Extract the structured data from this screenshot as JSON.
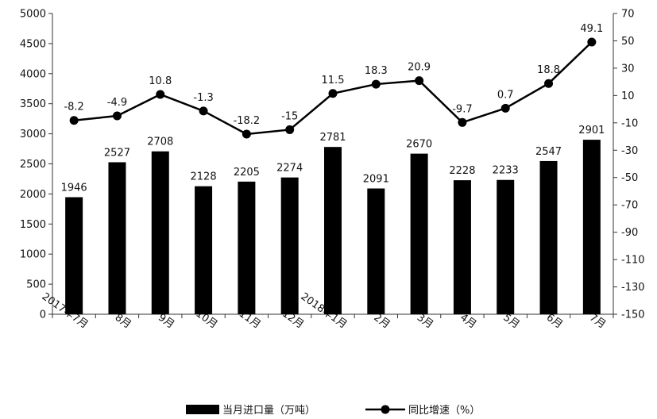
{
  "chart_data": {
    "type": "bar",
    "categories": [
      "2017年7月",
      "8月",
      "9月",
      "10月",
      "11月",
      "12月",
      "2018年1月",
      "2月",
      "3月",
      "4月",
      "5月",
      "6月",
      "7月"
    ],
    "series": [
      {
        "name": "当月进口量（万吨）",
        "type": "bar",
        "axis": "left",
        "values": [
          1946,
          2527,
          2708,
          2128,
          2205,
          2274,
          2781,
          2091,
          2670,
          2228,
          2233,
          2547,
          2901
        ],
        "labels": [
          "1946",
          "2527",
          "2708",
          "2128",
          "2205",
          "2274",
          "2781",
          "2091",
          "2670",
          "2228",
          "2233",
          "2547",
          "2901"
        ]
      },
      {
        "name": "同比增速（%）",
        "type": "line",
        "axis": "right",
        "values": [
          -8.2,
          -4.9,
          10.8,
          -1.3,
          -18.2,
          -15,
          11.5,
          18.3,
          20.9,
          -9.7,
          0.7,
          18.8,
          49.1
        ],
        "labels": [
          "-8.2",
          "-4.9",
          "10.8",
          "-1.3",
          "-18.2",
          "-15",
          "11.5",
          "18.3",
          "20.9",
          "-9.7",
          "0.7",
          "18.8",
          "49.1"
        ]
      }
    ],
    "ylim_left": [
      0,
      5000
    ],
    "yticks_left": [
      "0",
      "500",
      "1000",
      "1500",
      "2000",
      "2500",
      "3000",
      "3500",
      "4000",
      "4500",
      "5000"
    ],
    "ylim_right": [
      -150,
      70
    ],
    "yticks_right": [
      "-150",
      "-130",
      "-110",
      "-90",
      "-70",
      "-50",
      "-30",
      "-10",
      "10",
      "30",
      "50",
      "70"
    ],
    "grid": false,
    "legend_position": "bottom-center",
    "colors": {
      "bar": "#000000",
      "line": "#000000",
      "axis": "#333333"
    }
  }
}
